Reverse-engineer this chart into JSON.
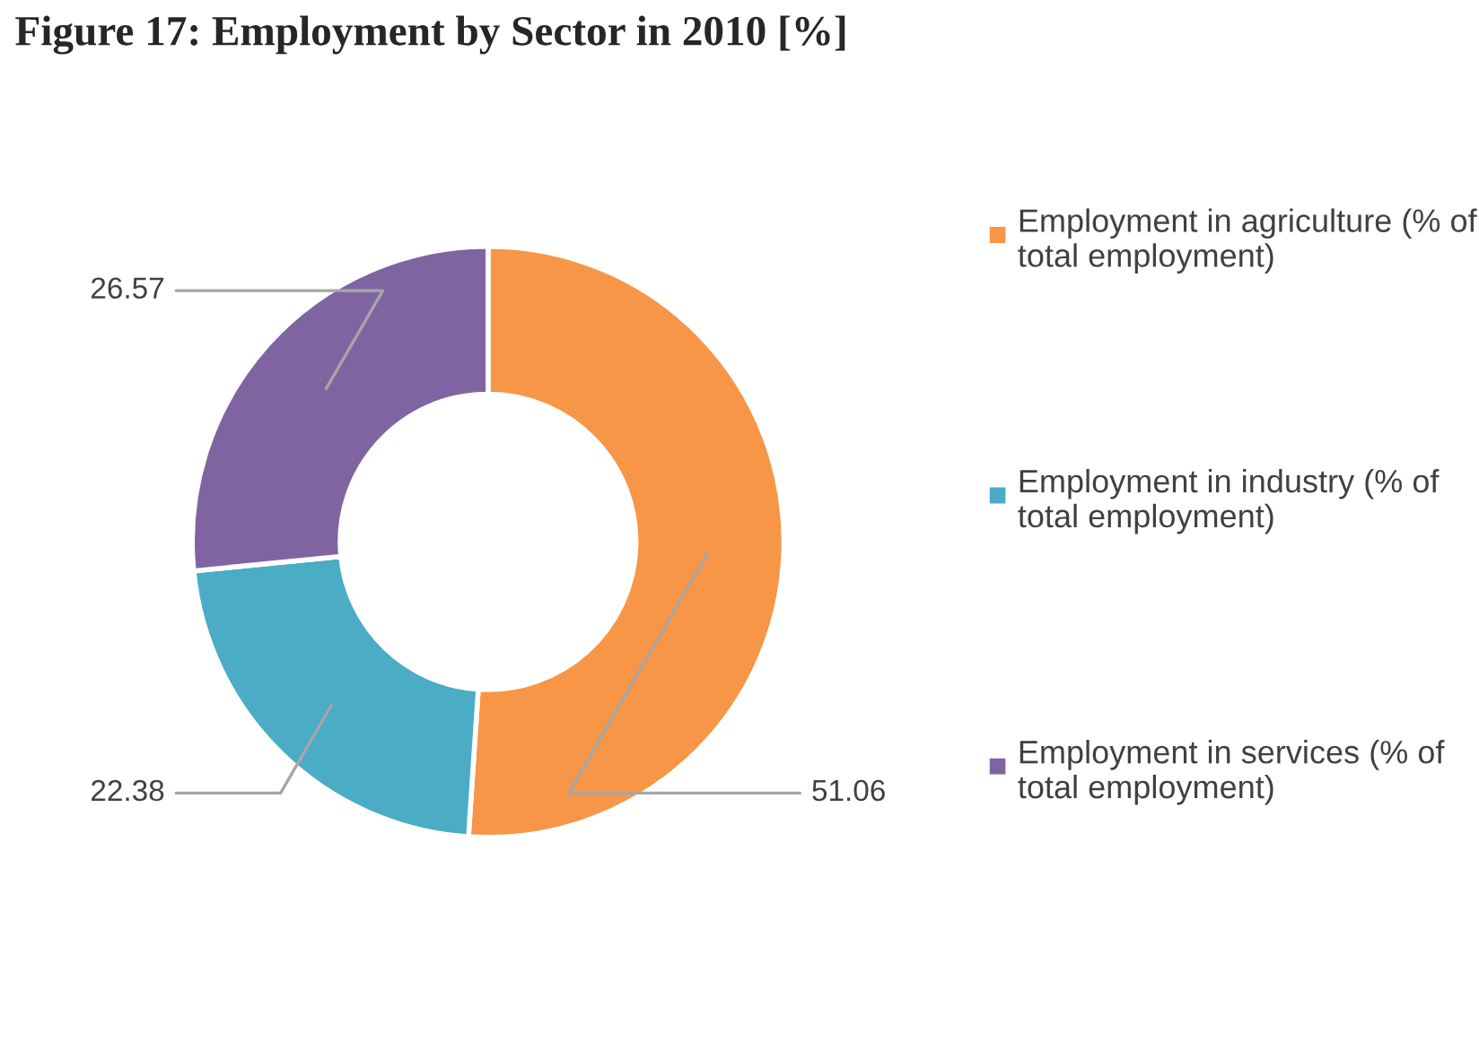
{
  "chart_data": {
    "type": "donut",
    "title": "Figure 17: Employment by Sector in 2010 [%]",
    "categories": [
      "Employment in agriculture (% of total employment)",
      "Employment in industry (% of total employment)",
      "Employment in services (% of total employment)"
    ],
    "values": [
      51.06,
      22.38,
      26.57
    ],
    "colors": [
      "#f79646",
      "#4bacc6",
      "#8064a2"
    ],
    "data_labels": true,
    "legend": "right"
  }
}
